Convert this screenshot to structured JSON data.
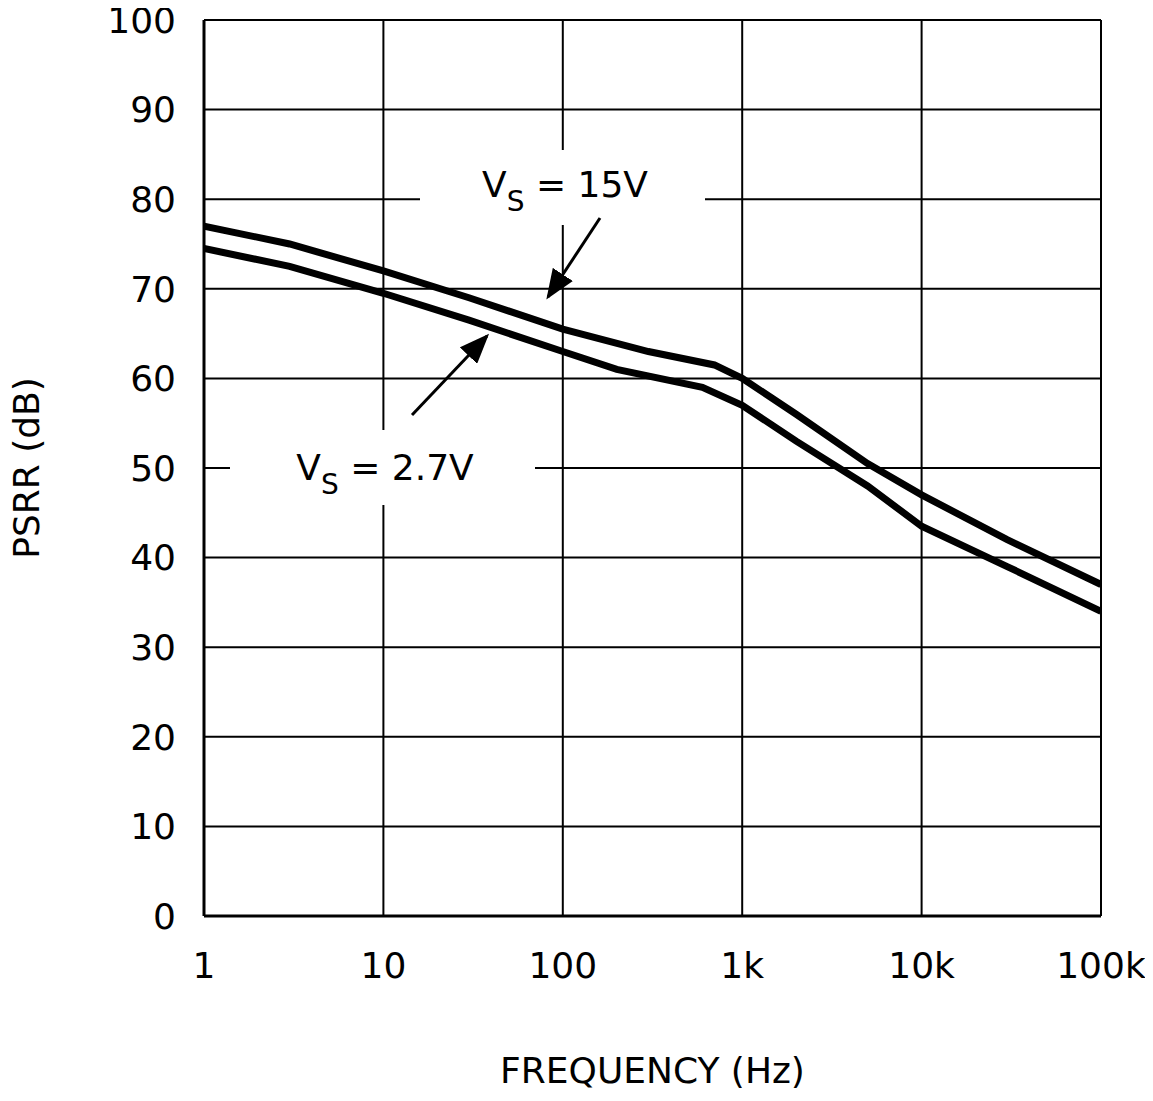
{
  "chart_data": {
    "type": "line",
    "x_label": "FREQUENCY (Hz)",
    "y_label": "PSRR (dB)",
    "log": "x",
    "grid": true,
    "xlim": [
      1,
      100000
    ],
    "ylim": [
      0,
      100
    ],
    "xticks": [
      1,
      10,
      100,
      {
        "value": 1000,
        "label": "1k"
      },
      {
        "value": 10000,
        "label": "10k"
      },
      {
        "value": 100000,
        "label": "100k"
      }
    ],
    "yticks": [
      0,
      10,
      20,
      30,
      40,
      50,
      60,
      70,
      80,
      90,
      100
    ],
    "series": [
      {
        "name": "VS = 15V",
        "color": "#000000",
        "x": [
          1,
          3,
          10,
          30,
          100,
          300,
          700,
          1000,
          2000,
          5000,
          10000,
          30000,
          100000
        ],
        "values": [
          77,
          75,
          72,
          69,
          65.5,
          63,
          61.5,
          60,
          56,
          50.5,
          47,
          42,
          37
        ]
      },
      {
        "name": "VS = 2.7V",
        "color": "#000000",
        "x": [
          1,
          3,
          10,
          30,
          100,
          200,
          600,
          1000,
          2000,
          5000,
          10000,
          30000,
          100000
        ],
        "values": [
          74.5,
          72.5,
          69.5,
          66.5,
          63,
          61,
          59,
          57,
          53,
          48,
          43.5,
          39,
          34
        ]
      }
    ]
  }
}
